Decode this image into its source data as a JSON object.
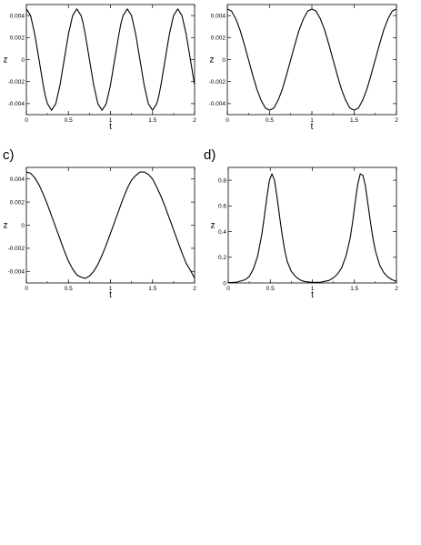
{
  "chart_data": [
    {
      "id": "a",
      "panel_label": "",
      "type": "line",
      "xlabel": "t",
      "ylabel": "z",
      "xlim": [
        0,
        2
      ],
      "ylim": [
        -0.005,
        0.005
      ],
      "x_ticks": [
        0,
        0.5,
        1,
        1.5,
        2
      ],
      "x_tick_labels": [
        "0",
        "0.5",
        "1",
        "1.5",
        "2"
      ],
      "y_ticks": [
        -0.004,
        -0.002,
        0,
        0.002,
        0.004
      ],
      "y_tick_labels": [
        "-0.004",
        "-0.002",
        "0",
        "0.002",
        "0.004"
      ],
      "grid": false,
      "series": [
        {
          "x": [
            0.0,
            0.05,
            0.1,
            0.15,
            0.2,
            0.225,
            0.25,
            0.3,
            0.35,
            0.4,
            0.45,
            0.5,
            0.55,
            0.6,
            0.65,
            0.675,
            0.7,
            0.75,
            0.8,
            0.85,
            0.9,
            0.95,
            1.0,
            1.05,
            1.1,
            1.125,
            1.15,
            1.2,
            1.25,
            1.3,
            1.35,
            1.4,
            1.45,
            1.5,
            1.55,
            1.575,
            1.6,
            1.65,
            1.7,
            1.75,
            1.8,
            1.85,
            1.9,
            1.95,
            2.0
          ],
          "y": [
            0.0046,
            0.004,
            0.0023,
            0.0,
            -0.0023,
            -0.0033,
            -0.004,
            -0.0046,
            -0.004,
            -0.0023,
            0.0,
            0.0023,
            0.004,
            0.0046,
            0.004,
            0.0033,
            0.0023,
            0.0,
            -0.0023,
            -0.004,
            -0.0046,
            -0.004,
            -0.0023,
            0.0,
            0.0023,
            0.0033,
            0.004,
            0.0046,
            0.004,
            0.0023,
            0.0,
            -0.0023,
            -0.004,
            -0.0046,
            -0.004,
            -0.0033,
            -0.0023,
            0.0,
            0.0023,
            0.004,
            0.0046,
            0.004,
            0.0023,
            0.0,
            -0.0023
          ]
        }
      ]
    },
    {
      "id": "b",
      "panel_label": "",
      "type": "line",
      "xlabel": "t",
      "ylabel": "z",
      "xlim": [
        0,
        2
      ],
      "ylim": [
        -0.005,
        0.005
      ],
      "x_ticks": [
        0,
        0.5,
        1,
        1.5,
        2
      ],
      "x_tick_labels": [
        "0",
        "0.5",
        "1",
        "1.5",
        "2"
      ],
      "y_ticks": [
        -0.004,
        -0.002,
        0,
        0.002,
        0.004
      ],
      "y_tick_labels": [
        "-0.004",
        "-0.002",
        "0",
        "0.002",
        "0.004"
      ],
      "grid": false,
      "series": [
        {
          "x": [
            0.0,
            0.05,
            0.1,
            0.15,
            0.2,
            0.25,
            0.3,
            0.35,
            0.4,
            0.45,
            0.5,
            0.55,
            0.6,
            0.65,
            0.7,
            0.75,
            0.8,
            0.85,
            0.9,
            0.95,
            1.0,
            1.05,
            1.1,
            1.15,
            1.2,
            1.25,
            1.3,
            1.35,
            1.4,
            1.45,
            1.5,
            1.55,
            1.6,
            1.65,
            1.7,
            1.75,
            1.8,
            1.85,
            1.9,
            1.95,
            2.0
          ],
          "y": [
            0.0046,
            0.0044,
            0.0037,
            0.0027,
            0.0014,
            0.0,
            -0.0014,
            -0.0027,
            -0.0037,
            -0.0044,
            -0.0046,
            -0.0044,
            -0.0037,
            -0.0027,
            -0.0014,
            0.0,
            0.0014,
            0.0027,
            0.0037,
            0.0044,
            0.0046,
            0.0044,
            0.0037,
            0.0027,
            0.0014,
            0.0,
            -0.0014,
            -0.0027,
            -0.0037,
            -0.0044,
            -0.0046,
            -0.0044,
            -0.0037,
            -0.0027,
            -0.0014,
            0.0,
            0.0014,
            0.0027,
            0.0037,
            0.0044,
            0.0046
          ]
        }
      ]
    },
    {
      "id": "c",
      "panel_label": "c)",
      "type": "line",
      "xlabel": "t",
      "ylabel": "z",
      "xlim": [
        0,
        2
      ],
      "ylim": [
        -0.005,
        0.005
      ],
      "x_ticks": [
        0,
        0.5,
        1,
        1.5,
        2
      ],
      "x_tick_labels": [
        "0",
        "0.5",
        "1",
        "1.5",
        "2"
      ],
      "y_ticks": [
        -0.004,
        -0.002,
        0,
        0.002,
        0.004
      ],
      "y_tick_labels": [
        "-0.004",
        "-0.002",
        "0",
        "0.002",
        "0.004"
      ],
      "grid": false,
      "series": [
        {
          "x": [
            0.0,
            0.05,
            0.1,
            0.15,
            0.2,
            0.25,
            0.3,
            0.35,
            0.4,
            0.45,
            0.5,
            0.55,
            0.6,
            0.65,
            0.7,
            0.75,
            0.8,
            0.85,
            0.9,
            0.95,
            1.0,
            1.05,
            1.1,
            1.15,
            1.2,
            1.25,
            1.3,
            1.35,
            1.4,
            1.45,
            1.5,
            1.55,
            1.6,
            1.65,
            1.7,
            1.75,
            1.8,
            1.85,
            1.9,
            1.95,
            2.0
          ],
          "y": [
            0.0046,
            0.0045,
            0.0041,
            0.0035,
            0.0027,
            0.0018,
            0.0008,
            -0.0002,
            -0.0012,
            -0.0022,
            -0.0031,
            -0.0038,
            -0.0043,
            -0.0045,
            -0.0046,
            -0.0044,
            -0.004,
            -0.0034,
            -0.0026,
            -0.0017,
            -0.0007,
            0.0003,
            0.0013,
            0.0023,
            0.0032,
            0.0039,
            0.0043,
            0.0046,
            0.0046,
            0.0044,
            0.004,
            0.0033,
            0.0025,
            0.0016,
            0.0006,
            -0.0004,
            -0.0014,
            -0.0024,
            -0.0033,
            -0.0039,
            -0.0046
          ]
        }
      ]
    },
    {
      "id": "d",
      "panel_label": "d)",
      "type": "line",
      "xlabel": "t",
      "ylabel": "z",
      "xlim": [
        0,
        2
      ],
      "ylim": [
        0,
        0.9
      ],
      "x_ticks": [
        0,
        0.5,
        1,
        1.5,
        2
      ],
      "x_tick_labels": [
        "0",
        "0.5",
        "1",
        "1.5",
        "2"
      ],
      "y_ticks": [
        0,
        0.2,
        0.4,
        0.6,
        0.8
      ],
      "y_tick_labels": [
        "0",
        "0.2",
        "0.4",
        "0.6",
        "0.8"
      ],
      "grid": false,
      "series": [
        {
          "x": [
            0.0,
            0.1,
            0.2,
            0.25,
            0.3,
            0.35,
            0.4,
            0.43,
            0.46,
            0.49,
            0.52,
            0.55,
            0.58,
            0.61,
            0.64,
            0.67,
            0.7,
            0.75,
            0.8,
            0.85,
            0.9,
            1.0,
            1.1,
            1.2,
            1.25,
            1.3,
            1.35,
            1.4,
            1.45,
            1.48,
            1.51,
            1.54,
            1.57,
            1.6,
            1.63,
            1.66,
            1.69,
            1.72,
            1.75,
            1.8,
            1.85,
            1.9,
            1.95,
            2.0
          ],
          "y": [
            0.002,
            0.006,
            0.025,
            0.05,
            0.11,
            0.21,
            0.38,
            0.52,
            0.67,
            0.8,
            0.85,
            0.8,
            0.67,
            0.52,
            0.38,
            0.26,
            0.17,
            0.09,
            0.05,
            0.025,
            0.012,
            0.004,
            0.006,
            0.02,
            0.04,
            0.07,
            0.12,
            0.21,
            0.35,
            0.48,
            0.63,
            0.77,
            0.85,
            0.84,
            0.76,
            0.62,
            0.48,
            0.35,
            0.25,
            0.14,
            0.08,
            0.045,
            0.025,
            0.012
          ]
        }
      ]
    }
  ]
}
